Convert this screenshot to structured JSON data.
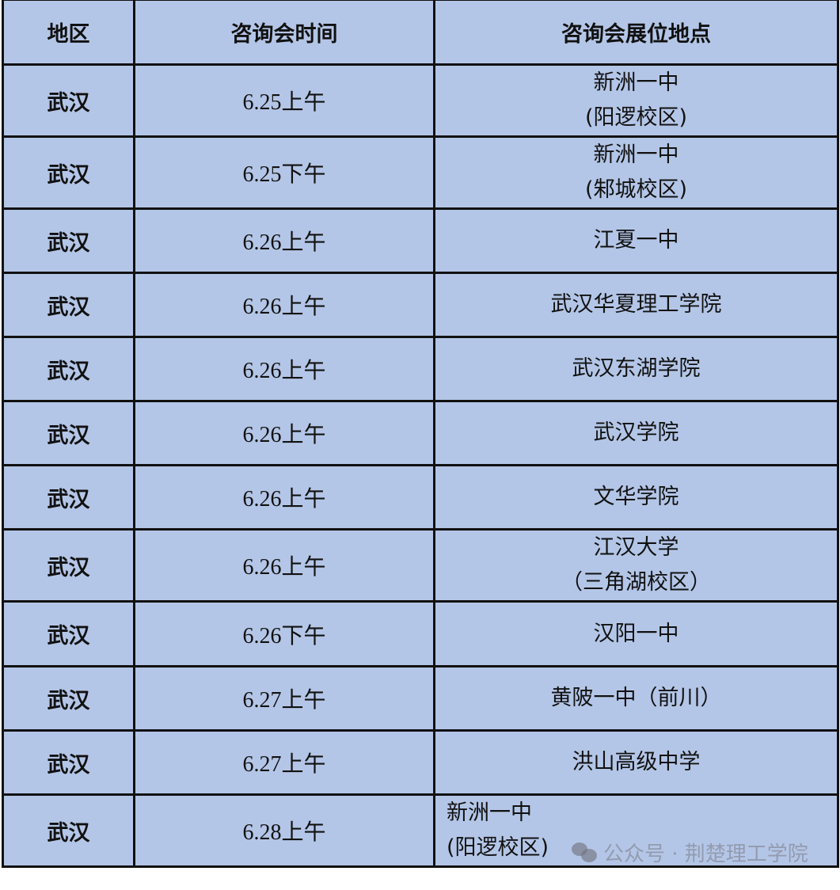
{
  "headers": [
    "地区",
    "咨询会时间",
    "咨询会展位地点"
  ],
  "rows": [
    {
      "region": "武汉",
      "time": "6.25上午",
      "place": [
        "新洲一中",
        "(阳逻校区)"
      ]
    },
    {
      "region": "武汉",
      "time": "6.25下午",
      "place": [
        "新洲一中",
        "(邾城校区)"
      ]
    },
    {
      "region": "武汉",
      "time": "6.26上午",
      "place": [
        "江夏一中"
      ]
    },
    {
      "region": "武汉",
      "time": "6.26上午",
      "place": [
        "武汉华夏理工学院"
      ]
    },
    {
      "region": "武汉",
      "time": "6.26上午",
      "place": [
        "武汉东湖学院"
      ]
    },
    {
      "region": "武汉",
      "time": "6.26上午",
      "place": [
        "武汉学院"
      ]
    },
    {
      "region": "武汉",
      "time": "6.26上午",
      "place": [
        "文华学院"
      ]
    },
    {
      "region": "武汉",
      "time": "6.26上午",
      "place": [
        "江汉大学",
        "（三角湖校区）"
      ]
    },
    {
      "region": "武汉",
      "time": "6.26下午",
      "place": [
        "汉阳一中"
      ]
    },
    {
      "region": "武汉",
      "time": "6.27上午",
      "place": [
        "黄陂一中（前川）"
      ]
    },
    {
      "region": "武汉",
      "time": "6.27上午",
      "place": [
        "洪山高级中学"
      ]
    },
    {
      "region": "武汉",
      "time": "6.28上午",
      "place": [
        "新洲一中",
        "(阳逻校区)"
      ]
    }
  ],
  "row_heights_note_none": null,
  "watermark": {
    "text": "公众号 · 荆楚理工学院",
    "icon": "wechat-icon"
  },
  "colors": {
    "cell_background": "#b4c6e7",
    "border": "#111111"
  }
}
